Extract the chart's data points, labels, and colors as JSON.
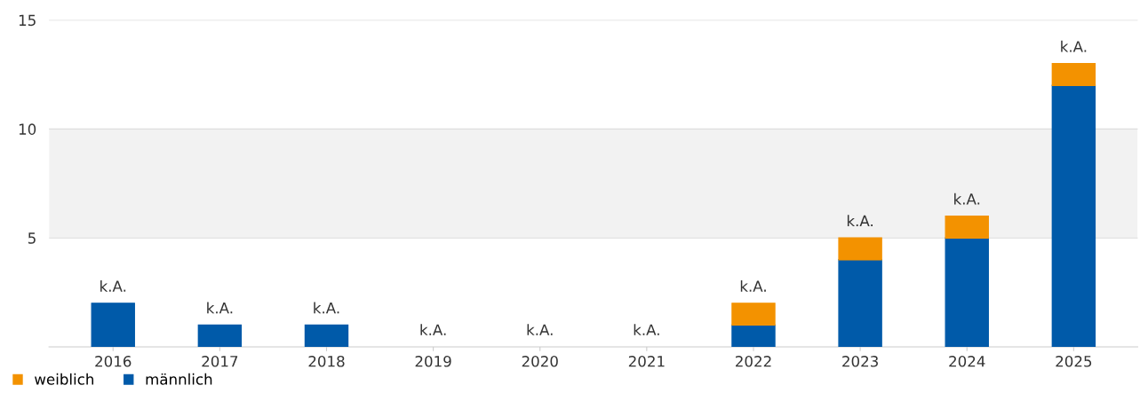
{
  "chart_data": {
    "type": "bar",
    "stacked": true,
    "categories": [
      "2016",
      "2017",
      "2018",
      "2019",
      "2020",
      "2021",
      "2022",
      "2023",
      "2024",
      "2025"
    ],
    "series": [
      {
        "name": "männlich",
        "color": "#005aa9",
        "values": [
          2,
          1,
          1,
          0,
          0,
          0,
          1,
          4,
          5,
          12
        ]
      },
      {
        "name": "weiblich",
        "color": "#f39200",
        "values": [
          0,
          0,
          0,
          0,
          0,
          0,
          1,
          1,
          1,
          1
        ]
      }
    ],
    "ylim": [
      0,
      15
    ],
    "yticks": [
      5,
      10,
      15
    ],
    "grid": "y",
    "bands": [
      {
        "axis": "y",
        "from": 5,
        "to": 10,
        "color": "#f2f2f2"
      }
    ],
    "totals": [
      "k.A.",
      "k.A.",
      "k.A.",
      "k.A.",
      "k.A.",
      "k.A.",
      "k.A.",
      "k.A.",
      "k.A.",
      "k.A."
    ],
    "legend": "bottom left"
  }
}
